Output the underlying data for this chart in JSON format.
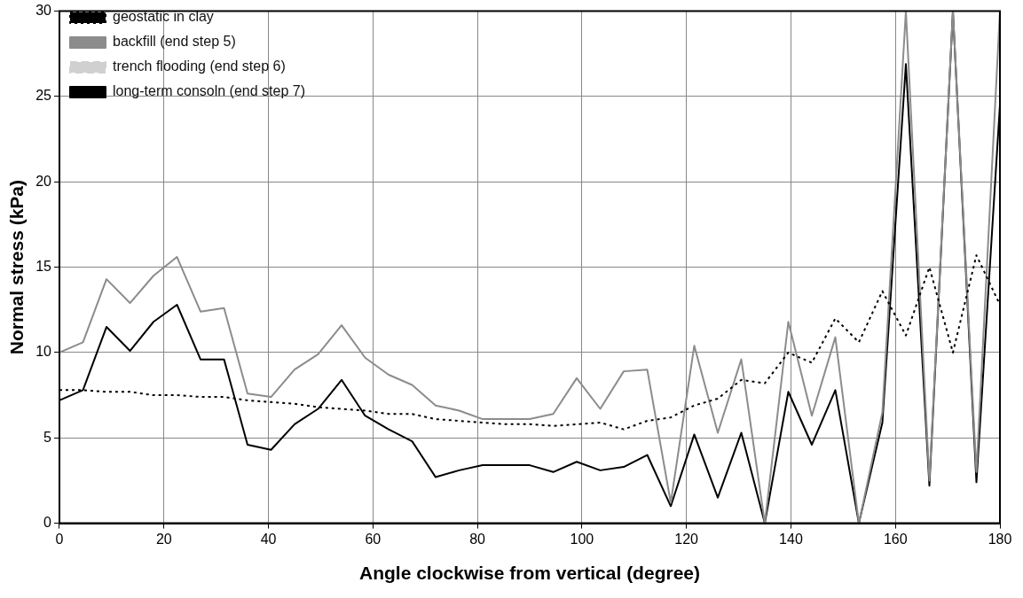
{
  "chart_data": {
    "type": "line",
    "xlabel": "Angle clockwise from vertical (degree)",
    "ylabel": "Normal stress (kPa)",
    "x": [
      0,
      4.5,
      9,
      13.5,
      18,
      22.5,
      27,
      31.5,
      36,
      40.5,
      45,
      49.5,
      54,
      58.5,
      63,
      67.5,
      72,
      76.5,
      81,
      85.5,
      90,
      94.5,
      99,
      103.5,
      108,
      112.5,
      117,
      121.5,
      126,
      130.5,
      135,
      139.5,
      144,
      148.5,
      153,
      157.5,
      162,
      166.5,
      171,
      175.5,
      180
    ],
    "series": [
      {
        "name": "geostatic in clay",
        "color": "#000000",
        "line_style": "dotted",
        "values": [
          7.8,
          7.8,
          7.7,
          7.7,
          7.5,
          7.5,
          7.4,
          7.4,
          7.2,
          7.1,
          7.0,
          6.8,
          6.7,
          6.6,
          6.4,
          6.4,
          6.1,
          6.0,
          5.9,
          5.8,
          5.8,
          5.7,
          5.8,
          5.9,
          5.5,
          6.0,
          6.2,
          6.9,
          7.3,
          8.4,
          8.2,
          10.0,
          9.4,
          12.0,
          10.6,
          13.6,
          11.0,
          15.0,
          10.0,
          15.7,
          12.8
        ]
      },
      {
        "name": "backfill (end step 5)",
        "color": "#8c8c8c",
        "line_style": "solid",
        "values": [
          10,
          10.6,
          14.3,
          12.9,
          14.5,
          15.6,
          12.4,
          12.6,
          7.6,
          7.4,
          9.0,
          9.9,
          11.6,
          9.7,
          8.7,
          8.1,
          6.9,
          6.6,
          6.1,
          6.1,
          6.1,
          6.4,
          8.5,
          6.7,
          8.9,
          9.0,
          1.2,
          10.4,
          5.3,
          9.6,
          0,
          11.8,
          6.3,
          10.9,
          0,
          6.5,
          30,
          2.5,
          30,
          3.0,
          30
        ]
      },
      {
        "name": "trench flooding (end step 6)",
        "color": "#d0d0d0",
        "line_style": "dashed",
        "values": [
          null,
          null,
          null,
          null,
          null,
          null,
          null,
          null,
          null,
          null,
          null,
          null,
          null,
          null,
          null,
          null,
          null,
          null,
          null,
          null,
          null,
          null,
          null,
          null,
          null,
          null,
          null,
          null,
          null,
          null,
          null,
          null,
          null,
          null,
          null,
          null,
          null,
          null,
          null,
          null,
          null
        ]
      },
      {
        "name": "long-term consoln (end step 7)",
        "color": "#000000",
        "line_style": "solid",
        "values": [
          7.2,
          7.8,
          11.5,
          10.1,
          11.8,
          12.8,
          9.6,
          9.6,
          4.6,
          4.3,
          5.8,
          6.7,
          8.4,
          6.3,
          5.5,
          4.8,
          2.7,
          3.1,
          3.4,
          3.4,
          3.4,
          3.0,
          3.6,
          3.1,
          3.3,
          4.0,
          1.0,
          5.2,
          1.5,
          5.3,
          0,
          7.7,
          4.6,
          7.8,
          0,
          5.9,
          26.9,
          2.2,
          30,
          2.4,
          24.5
        ]
      }
    ],
    "xlim": [
      0,
      180
    ],
    "xticks": [
      0,
      20,
      40,
      60,
      80,
      100,
      120,
      140,
      160,
      180
    ],
    "ylim": [
      0,
      30
    ],
    "yticks": [
      0,
      5,
      10,
      15,
      20,
      25,
      30
    ],
    "grid": true,
    "legend": "top left",
    "marker": "none"
  }
}
